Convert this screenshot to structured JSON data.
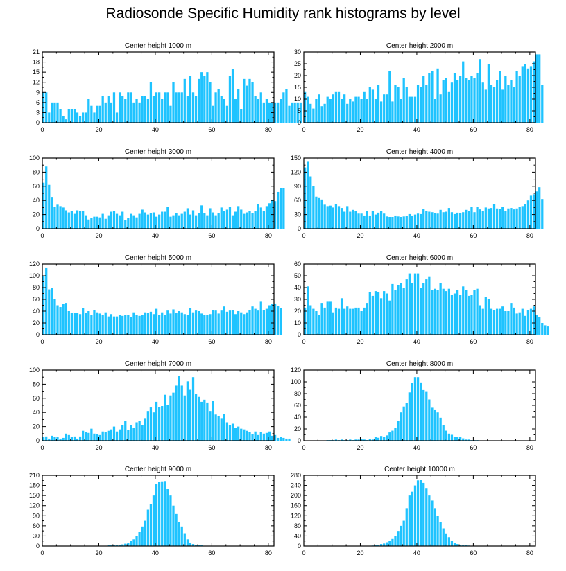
{
  "title": "Radiosonde Specific Humidity rank histograms by level",
  "colors": {
    "bar": "#1ec3ff",
    "bar_edge": "#ffffff",
    "axis": "#000000"
  },
  "chart_data": [
    {
      "type": "bar",
      "title": "Center height 1000 m",
      "xlim": [
        0,
        82
      ],
      "ylim": [
        0,
        21
      ],
      "xticks": [
        0,
        20,
        40,
        60,
        80
      ],
      "yticks": [
        0,
        3,
        6,
        9,
        12,
        15,
        18,
        21
      ],
      "values": [
        9,
        9,
        3,
        6,
        6,
        6,
        4,
        2,
        1,
        4,
        4,
        4,
        3,
        2,
        3,
        3,
        7,
        5,
        3,
        5,
        5,
        8,
        6,
        8,
        6,
        9,
        3,
        9,
        8,
        7,
        9,
        9,
        6,
        7,
        6,
        8,
        8,
        7,
        12,
        8,
        9,
        9,
        7,
        9,
        9,
        5,
        12,
        9,
        9,
        9,
        13,
        8,
        14,
        9,
        8,
        13,
        15,
        14,
        15,
        12,
        5,
        9,
        10,
        8,
        7,
        5,
        14,
        16,
        7,
        10,
        4,
        13,
        11,
        13,
        12,
        8,
        7,
        9,
        6,
        7,
        6,
        6,
        6,
        6,
        7,
        9,
        10,
        5,
        6,
        6,
        6,
        6
      ]
    },
    {
      "type": "bar",
      "title": "Center height 2000 m",
      "xlim": [
        0,
        82
      ],
      "ylim": [
        0,
        30
      ],
      "xticks": [
        0,
        20,
        40,
        60,
        80
      ],
      "yticks": [
        0,
        5,
        10,
        15,
        20,
        25,
        30
      ],
      "values": [
        13,
        11,
        8,
        6,
        10,
        12,
        7,
        8,
        11,
        10,
        12,
        13,
        13,
        10,
        12,
        8,
        10,
        9,
        11,
        11,
        10,
        13,
        10,
        15,
        14,
        10,
        16,
        9,
        12,
        12,
        22,
        9,
        16,
        15,
        10,
        19,
        15,
        11,
        11,
        11,
        16,
        15,
        20,
        16,
        21,
        22,
        10,
        23,
        12,
        18,
        19,
        13,
        17,
        21,
        18,
        20,
        26,
        19,
        18,
        20,
        19,
        21,
        27,
        17,
        14,
        25,
        16,
        15,
        18,
        22,
        14,
        20,
        16,
        18,
        15,
        22,
        20,
        24,
        25,
        23,
        24,
        26,
        29,
        29,
        16
      ]
    },
    {
      "type": "bar",
      "title": "Center height 3000 m",
      "xlim": [
        0,
        82
      ],
      "ylim": [
        0,
        100
      ],
      "xticks": [
        0,
        20,
        40,
        60,
        80
      ],
      "yticks": [
        0,
        20,
        40,
        60,
        80,
        100
      ],
      "values": [
        65,
        88,
        62,
        44,
        31,
        34,
        32,
        30,
        26,
        23,
        25,
        21,
        26,
        25,
        25,
        19,
        13,
        15,
        17,
        17,
        16,
        21,
        14,
        19,
        24,
        25,
        21,
        19,
        24,
        12,
        15,
        21,
        19,
        16,
        21,
        27,
        23,
        20,
        22,
        23,
        17,
        20,
        24,
        24,
        31,
        17,
        19,
        22,
        19,
        21,
        24,
        29,
        20,
        26,
        19,
        22,
        33,
        22,
        19,
        29,
        23,
        19,
        22,
        30,
        25,
        27,
        31,
        19,
        24,
        32,
        27,
        21,
        23,
        25,
        22,
        25,
        35,
        30,
        25,
        32,
        36,
        40,
        39,
        52,
        57,
        57
      ]
    },
    {
      "type": "bar",
      "title": "Center height 4000 m",
      "xlim": [
        0,
        82
      ],
      "ylim": [
        0,
        150
      ],
      "xticks": [
        0,
        20,
        40,
        60,
        80
      ],
      "yticks": [
        0,
        30,
        60,
        90,
        120,
        150
      ],
      "values": [
        130,
        142,
        111,
        90,
        68,
        65,
        62,
        51,
        48,
        49,
        45,
        52,
        48,
        44,
        36,
        48,
        36,
        40,
        37,
        32,
        32,
        28,
        38,
        28,
        38,
        30,
        34,
        38,
        32,
        26,
        25,
        25,
        28,
        26,
        25,
        26,
        27,
        31,
        28,
        30,
        32,
        31,
        42,
        38,
        36,
        35,
        33,
        32,
        40,
        35,
        36,
        44,
        35,
        31,
        34,
        33,
        35,
        40,
        38,
        46,
        35,
        46,
        41,
        38,
        45,
        43,
        44,
        52,
        43,
        42,
        47,
        38,
        43,
        44,
        41,
        43,
        47,
        48,
        52,
        60,
        70,
        73,
        79,
        88,
        63
      ]
    },
    {
      "type": "bar",
      "title": "Center height 5000 m",
      "xlim": [
        0,
        82
      ],
      "ylim": [
        0,
        120
      ],
      "xticks": [
        0,
        20,
        40,
        60,
        80
      ],
      "yticks": [
        0,
        20,
        40,
        60,
        80,
        100,
        120
      ],
      "values": [
        100,
        113,
        77,
        80,
        60,
        50,
        47,
        52,
        54,
        40,
        37,
        37,
        37,
        35,
        45,
        37,
        40,
        33,
        42,
        38,
        36,
        33,
        38,
        31,
        35,
        31,
        31,
        34,
        32,
        33,
        33,
        30,
        38,
        34,
        32,
        34,
        38,
        37,
        39,
        35,
        44,
        33,
        38,
        34,
        41,
        36,
        43,
        37,
        40,
        38,
        35,
        34,
        45,
        38,
        41,
        40,
        36,
        34,
        34,
        35,
        42,
        41,
        36,
        41,
        48,
        39,
        41,
        42,
        35,
        40,
        38,
        35,
        38,
        42,
        48,
        44,
        41,
        56,
        42,
        44,
        50,
        52,
        53,
        49,
        45
      ]
    },
    {
      "type": "bar",
      "title": "Center height 6000 m",
      "xlim": [
        0,
        82
      ],
      "ylim": [
        0,
        60
      ],
      "xticks": [
        0,
        20,
        40,
        60,
        80
      ],
      "yticks": [
        0,
        10,
        20,
        30,
        40,
        50,
        60
      ],
      "values": [
        23,
        41,
        25,
        22,
        20,
        17,
        27,
        23,
        28,
        28,
        19,
        23,
        22,
        31,
        22,
        24,
        22,
        22,
        23,
        23,
        20,
        23,
        27,
        36,
        33,
        37,
        36,
        31,
        37,
        35,
        29,
        43,
        38,
        42,
        44,
        40,
        47,
        52,
        44,
        52,
        52,
        40,
        44,
        47,
        49,
        38,
        39,
        38,
        44,
        39,
        37,
        39,
        34,
        35,
        38,
        34,
        41,
        38,
        33,
        34,
        38,
        39,
        25,
        22,
        32,
        30,
        22,
        21,
        22,
        22,
        24,
        20,
        20,
        27,
        23,
        18,
        19,
        22,
        16,
        21,
        22,
        24,
        17,
        15,
        10,
        8,
        7
      ]
    },
    {
      "type": "bar",
      "title": "Center height 7000 m",
      "xlim": [
        0,
        82
      ],
      "ylim": [
        0,
        100
      ],
      "xticks": [
        0,
        20,
        40,
        60,
        80
      ],
      "yticks": [
        0,
        20,
        40,
        60,
        80,
        100
      ],
      "values": [
        5,
        6,
        3,
        7,
        5,
        5,
        3,
        4,
        10,
        8,
        5,
        6,
        3,
        6,
        14,
        12,
        11,
        17,
        10,
        9,
        8,
        13,
        12,
        14,
        16,
        20,
        13,
        16,
        22,
        28,
        15,
        22,
        18,
        26,
        28,
        22,
        32,
        42,
        47,
        40,
        55,
        48,
        49,
        65,
        50,
        64,
        68,
        78,
        92,
        78,
        64,
        84,
        72,
        90,
        66,
        62,
        55,
        58,
        54,
        42,
        56,
        37,
        35,
        32,
        38,
        26,
        22,
        24,
        18,
        20,
        17,
        16,
        14,
        12,
        9,
        13,
        8,
        12,
        10,
        11,
        13,
        7,
        8,
        4,
        5,
        4,
        3,
        3
      ]
    },
    {
      "type": "bar",
      "title": "Center height 8000 m",
      "xlim": [
        0,
        82
      ],
      "ylim": [
        0,
        120
      ],
      "xticks": [
        0,
        20,
        40,
        60,
        80
      ],
      "yticks": [
        0,
        20,
        40,
        60,
        80,
        100,
        120
      ],
      "values": [
        0,
        0,
        0,
        0,
        0,
        0,
        0,
        0,
        1,
        1,
        1,
        2,
        1,
        2,
        1,
        1,
        2,
        1,
        2,
        2,
        3,
        2,
        1,
        3,
        2,
        7,
        5,
        8,
        7,
        9,
        14,
        17,
        22,
        34,
        48,
        58,
        64,
        82,
        98,
        108,
        108,
        99,
        86,
        84,
        70,
        56,
        53,
        48,
        39,
        27,
        17,
        12,
        10,
        7,
        7,
        6,
        4,
        2,
        2,
        1,
        1,
        1,
        0,
        0,
        0,
        0,
        0,
        0,
        0,
        0,
        0,
        0,
        0,
        0,
        0,
        0,
        0,
        0,
        0,
        0,
        0,
        0
      ]
    },
    {
      "type": "bar",
      "title": "Center height 9000 m",
      "xlim": [
        0,
        82
      ],
      "ylim": [
        0,
        210
      ],
      "xticks": [
        0,
        20,
        40,
        60,
        80
      ],
      "yticks": [
        0,
        30,
        60,
        90,
        120,
        150,
        180,
        210
      ],
      "values": [
        0,
        0,
        0,
        0,
        0,
        0,
        0,
        0,
        0,
        0,
        0,
        0,
        0,
        0,
        0,
        0,
        0,
        0,
        0,
        0,
        0,
        1,
        1,
        2,
        2,
        3,
        3,
        4,
        5,
        7,
        10,
        15,
        20,
        30,
        42,
        58,
        75,
        108,
        125,
        150,
        185,
        190,
        192,
        193,
        170,
        150,
        120,
        95,
        72,
        58,
        38,
        20,
        10,
        6,
        4,
        3,
        2,
        1,
        1,
        1,
        0,
        0,
        0,
        0,
        0,
        0,
        0,
        0,
        0,
        0,
        0,
        0,
        0,
        0,
        0,
        0,
        0,
        0,
        0,
        0,
        0,
        0
      ]
    },
    {
      "type": "bar",
      "title": "Center height 10000 m",
      "xlim": [
        0,
        82
      ],
      "ylim": [
        0,
        280
      ],
      "xticks": [
        0,
        20,
        40,
        60,
        80
      ],
      "yticks": [
        0,
        40,
        80,
        120,
        160,
        200,
        240,
        280
      ],
      "values": [
        0,
        0,
        0,
        0,
        0,
        0,
        0,
        0,
        0,
        0,
        0,
        0,
        0,
        0,
        0,
        0,
        0,
        0,
        0,
        0,
        0,
        0,
        1,
        1,
        2,
        3,
        5,
        8,
        10,
        15,
        20,
        28,
        40,
        60,
        80,
        100,
        150,
        200,
        215,
        240,
        260,
        262,
        250,
        230,
        200,
        180,
        150,
        120,
        95,
        70,
        50,
        35,
        20,
        12,
        8,
        5,
        4,
        3,
        2,
        1,
        1,
        0,
        0,
        0,
        0,
        0,
        0,
        0,
        0,
        0,
        0,
        0,
        0,
        0,
        0,
        0,
        0,
        0,
        0,
        0,
        0,
        0
      ]
    }
  ]
}
